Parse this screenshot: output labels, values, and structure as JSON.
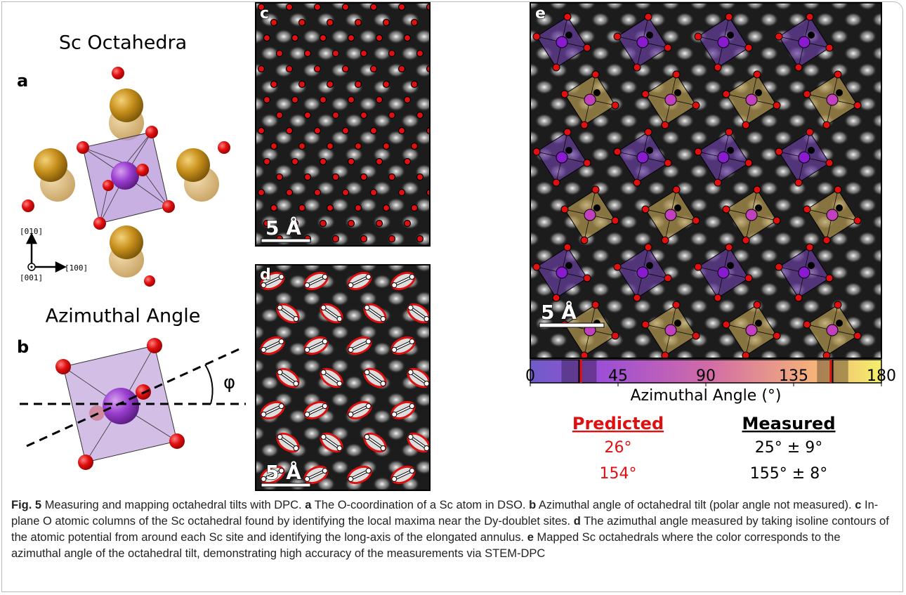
{
  "panel_a": {
    "title": "Sc Octahedra",
    "letter": "a",
    "axes": {
      "up": "[010]",
      "out": "[001]",
      "right": "[100]"
    }
  },
  "panel_b": {
    "title": "Azimuthal Angle",
    "letter": "b",
    "angle_symbol": "φ"
  },
  "panel_c": {
    "letter": "c",
    "scale_bar": "5 Å"
  },
  "panel_d": {
    "letter": "d",
    "scale_bar": "5 Å"
  },
  "panel_e": {
    "letter": "e",
    "scale_bar": "5 Å"
  },
  "colorbar": {
    "range": [
      0,
      180
    ],
    "ticks": [
      0,
      45,
      90,
      135,
      180
    ],
    "label": "Azimuthal Angle (°)"
  },
  "comparison": {
    "predicted_header": "Predicted",
    "measured_header": "Measured",
    "predicted": [
      {
        "value": 26,
        "label": "26°"
      },
      {
        "value": 154,
        "label": "154°"
      }
    ],
    "measured": [
      {
        "value": 25,
        "error": 9,
        "label": "25° ± 9°"
      },
      {
        "value": 155,
        "error": 8,
        "label": "155° ± 8°"
      }
    ]
  },
  "caption": {
    "label": "Fig. 5",
    "title": "Measuring and mapping octahedral tilts with DPC.",
    "parts": [
      {
        "letter": "a",
        "text": "The O-coordination of a Sc atom in DSO."
      },
      {
        "letter": "b",
        "text": "Azimuthal angle of octahedral tilt (polar angle not measured)."
      },
      {
        "letter": "c",
        "text": "In-plane O atomic columns of the Sc octahedral found by identifying the local maxima near the Dy-doublet sites."
      },
      {
        "letter": "d",
        "text": "The azimuthal angle measured by taking isoline contours of the atomic potential from around each Sc site and identifying the long-axis of the elongated annulus."
      },
      {
        "letter": "e",
        "text": "Mapped Sc octahedrals where the color corresponds to the azimuthal angle of the octahedral tilt, demonstrating high accuracy of the measurements via STEM-DPC"
      }
    ]
  }
}
